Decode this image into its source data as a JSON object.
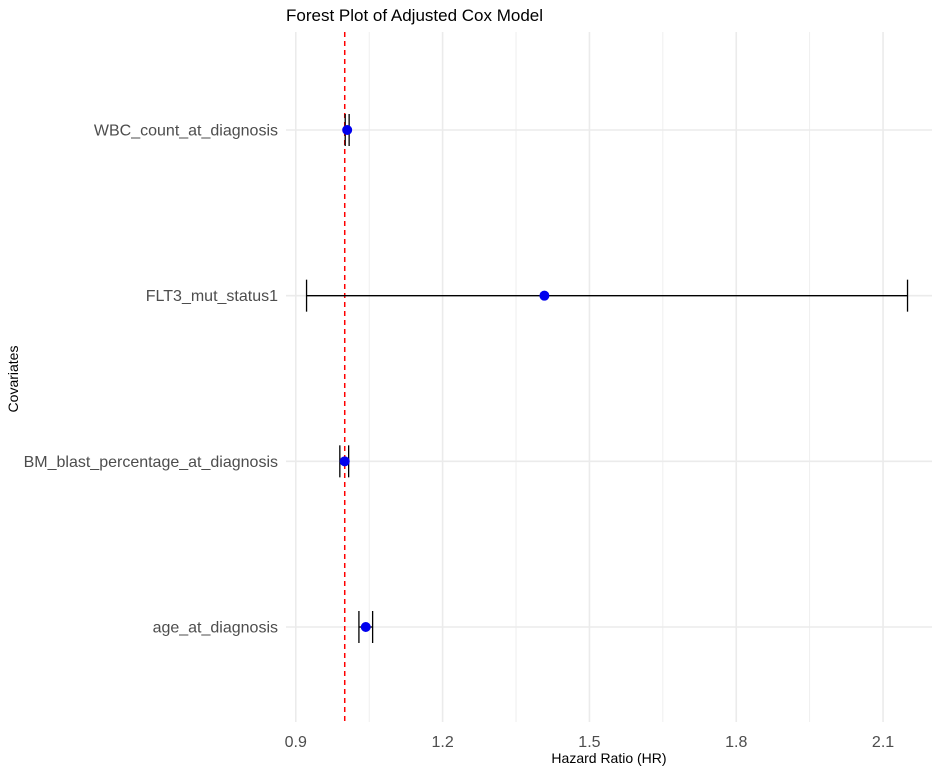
{
  "chart_data": {
    "type": "forest",
    "title": "Forest Plot of Adjusted Cox Model",
    "xlabel": "Hazard Ratio (HR)",
    "ylabel": "Covariates",
    "xlim": [
      0.88,
      2.2
    ],
    "x_ticks": [
      0.9,
      1.2,
      1.5,
      1.8,
      2.1
    ],
    "x_tick_labels": [
      "0.9",
      "1.2",
      "1.5",
      "1.8",
      "2.1"
    ],
    "reference_line": 1.0,
    "grid": true,
    "covariates": [
      {
        "name": "WBC_count_at_diagnosis",
        "hr": 1.005,
        "lower": 1.001,
        "upper": 1.009
      },
      {
        "name": "FLT3_mut_status1",
        "hr": 1.408,
        "lower": 0.922,
        "upper": 2.15
      },
      {
        "name": "BM_blast_percentage_at_diagnosis",
        "hr": 1.0,
        "lower": 0.99,
        "upper": 1.008
      },
      {
        "name": "age_at_diagnosis",
        "hr": 1.043,
        "lower": 1.029,
        "upper": 1.057
      }
    ],
    "colors": {
      "point": "#0000ee",
      "reference": "#ff0000",
      "errorbar": "#000000",
      "grid": "#ebebeb"
    }
  }
}
